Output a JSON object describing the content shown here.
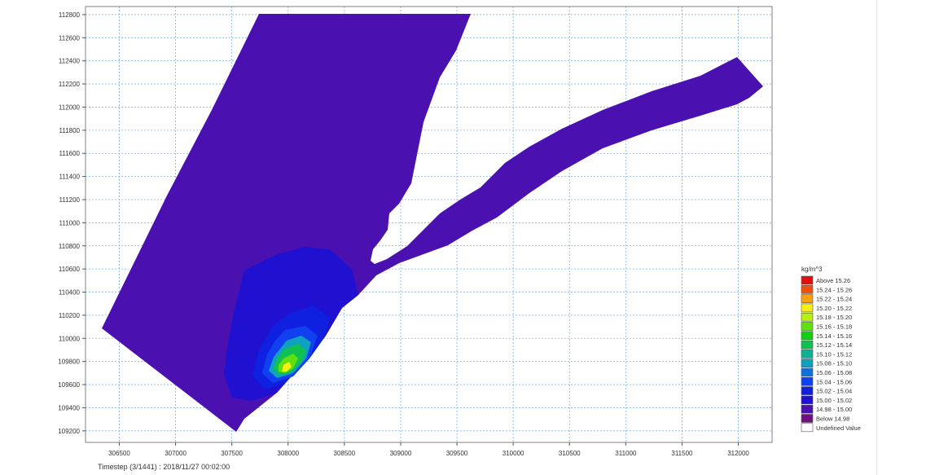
{
  "chart_data": {
    "type": "heatmap",
    "x_ticks": [
      306500,
      307000,
      307500,
      308000,
      308500,
      309000,
      309500,
      310000,
      310500,
      311000,
      311500,
      312000
    ],
    "y_ticks": [
      109200,
      109400,
      109600,
      109800,
      110000,
      110200,
      110400,
      110600,
      110800,
      111000,
      111200,
      111400,
      111600,
      111800,
      112000,
      112200,
      112400,
      112600,
      112800
    ],
    "xlim": [
      306200,
      312300
    ],
    "ylim": [
      109100,
      112870
    ],
    "grid": true,
    "legend_position": "right",
    "legend": {
      "unit": "kg/m^3",
      "entries": [
        {
          "label": "Above  15.26",
          "color": "#e01010"
        },
        {
          "label": "15.24 - 15.26",
          "color": "#f05010"
        },
        {
          "label": "15.22 - 15.24",
          "color": "#f8a010"
        },
        {
          "label": "15.20 - 15.22",
          "color": "#f8f010"
        },
        {
          "label": "15.18 - 15.20",
          "color": "#b8f010"
        },
        {
          "label": "15.16 - 15.18",
          "color": "#60e010"
        },
        {
          "label": "15.14 - 15.16",
          "color": "#10d010"
        },
        {
          "label": "15.12 - 15.14",
          "color": "#10c050"
        },
        {
          "label": "15.10 - 15.12",
          "color": "#10b090"
        },
        {
          "label": "15.08 - 15.10",
          "color": "#10a0c0"
        },
        {
          "label": "15.06 - 15.08",
          "color": "#1070e0"
        },
        {
          "label": "15.04 - 15.06",
          "color": "#1040f0"
        },
        {
          "label": "15.02 - 15.04",
          "color": "#1020e0"
        },
        {
          "label": "15.00 - 15.02",
          "color": "#2010d0"
        },
        {
          "label": "14.98 - 15.00",
          "color": "#4a10b0"
        },
        {
          "label": "Below  14.98",
          "color": "#701080"
        },
        {
          "label": "Undefined Value",
          "color": "#ffffff"
        }
      ]
    },
    "timestep_label": "Timestep (3/1441) : 2018/11/27 00:02:00"
  }
}
